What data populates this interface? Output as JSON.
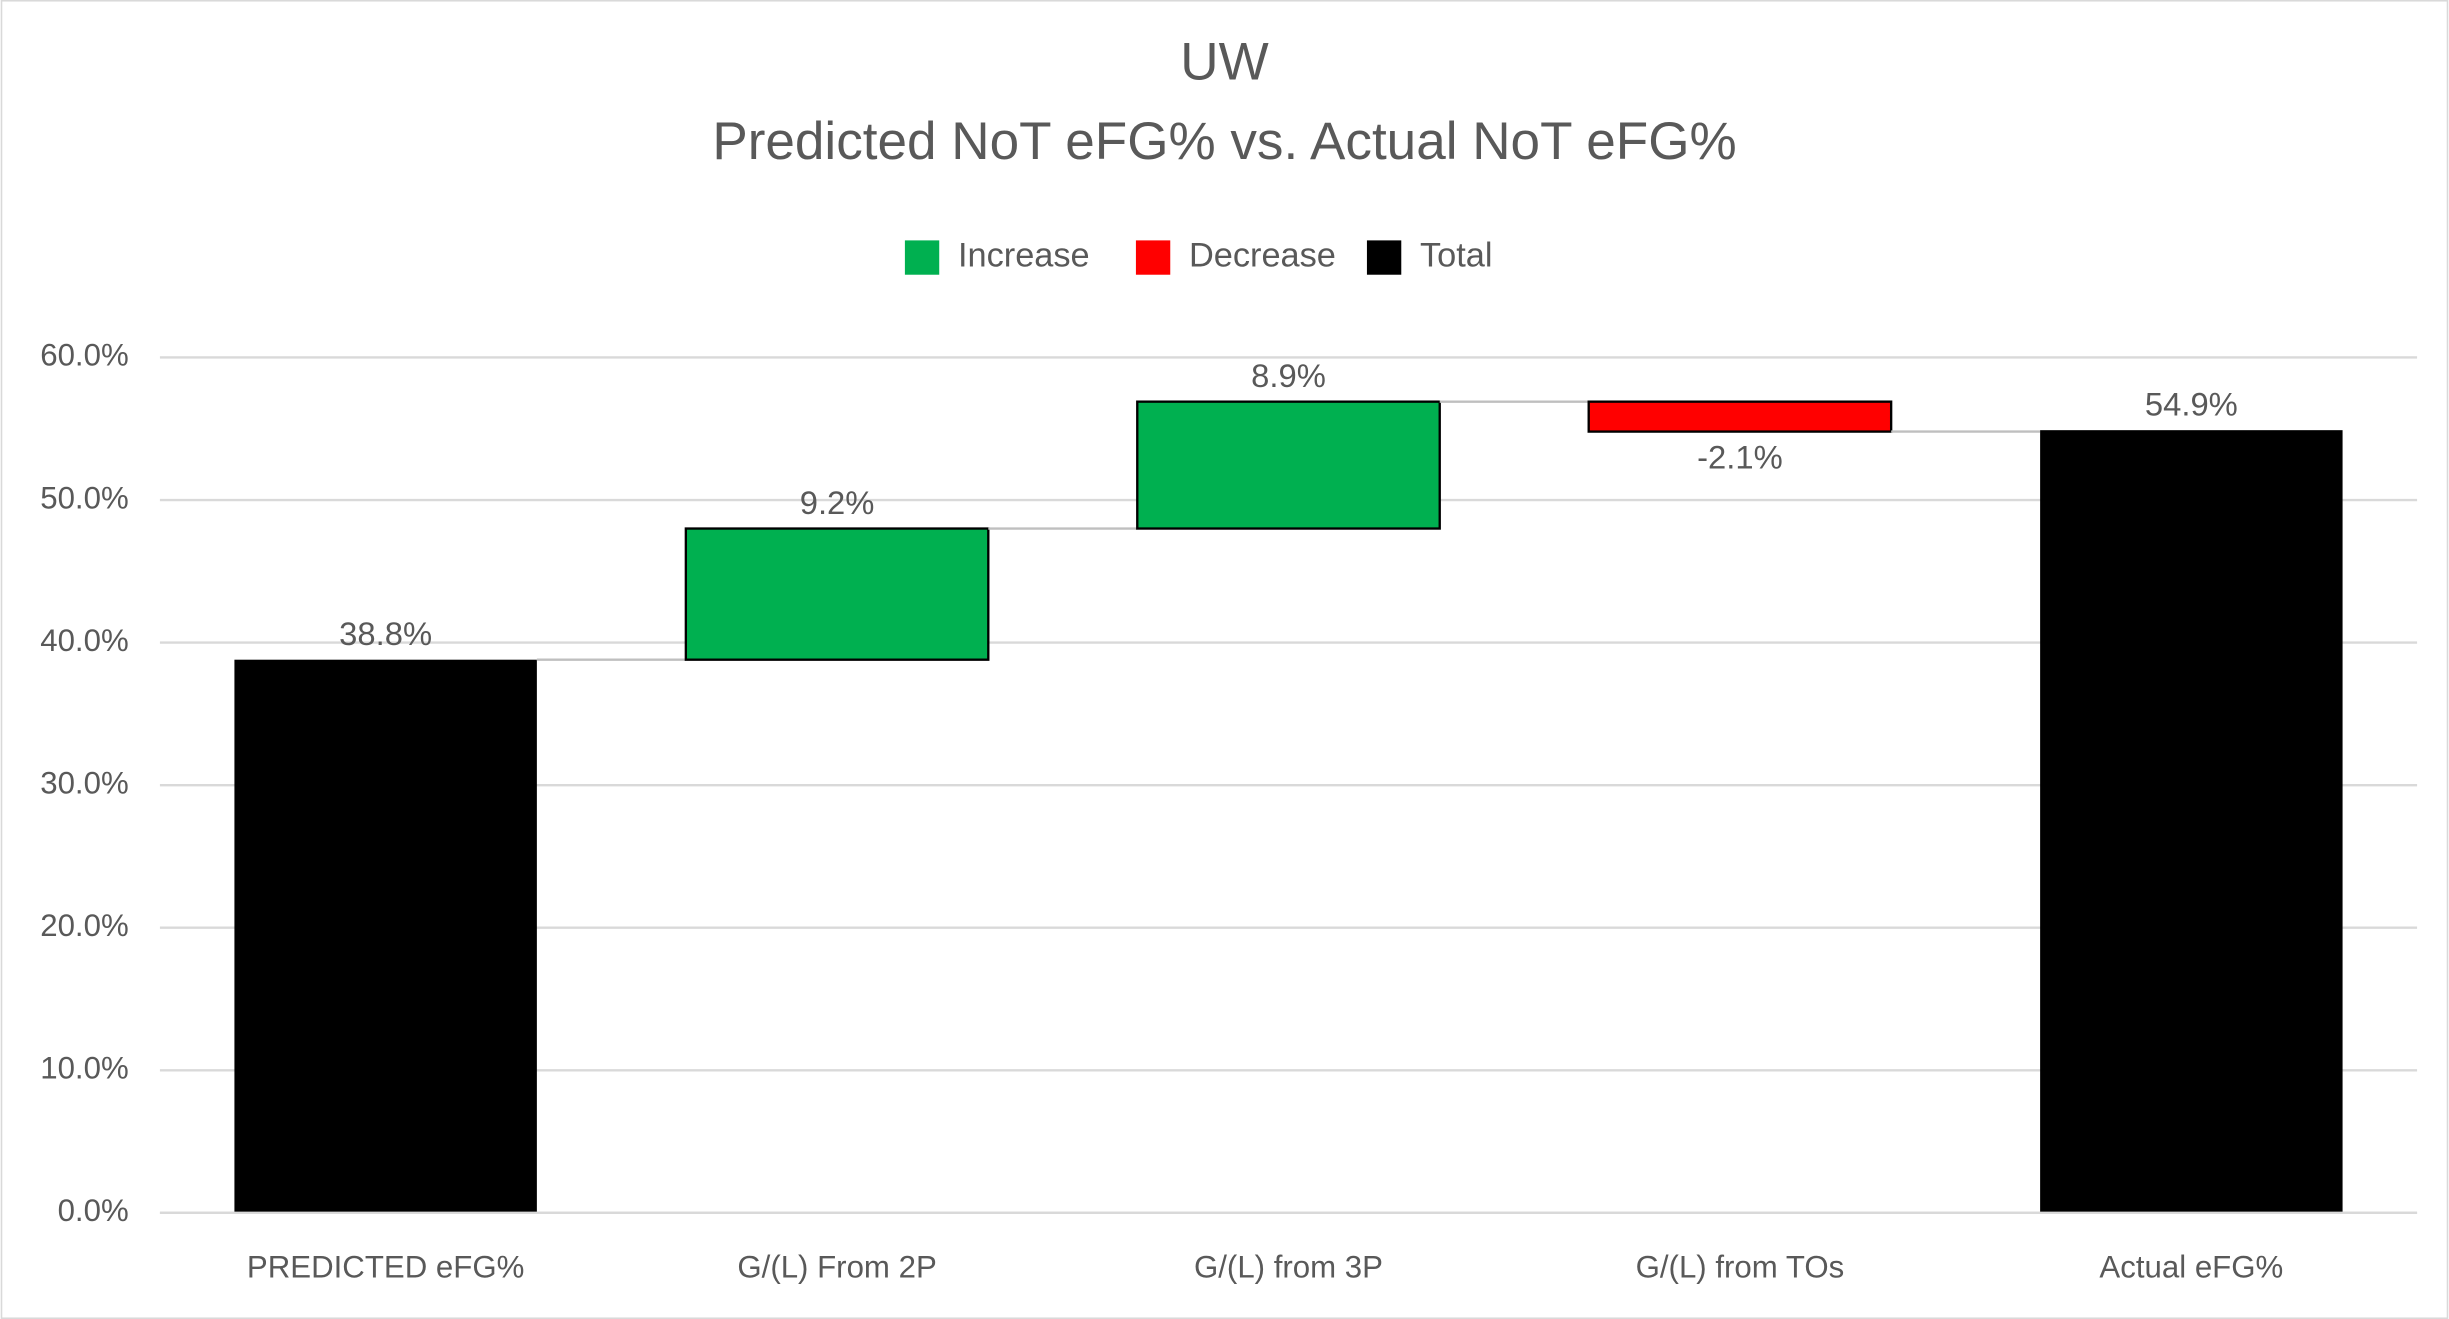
{
  "chart_data": {
    "type": "waterfall",
    "title": "UW",
    "subtitle": "Predicted NoT eFG% vs. Actual NoT eFG%",
    "categories": [
      "PREDICTED eFG%",
      "G/(L) From 2P",
      "G/(L) from 3P",
      "G/(L) from TOs",
      "Actual eFG%"
    ],
    "series": [
      {
        "name": "Increase",
        "color": "#00b050",
        "values": [
          null,
          9.2,
          8.9,
          null,
          null
        ],
        "value_labels": [
          null,
          "9.2%",
          "8.9%",
          null,
          null
        ]
      },
      {
        "name": "Decrease",
        "color": "#ff0000",
        "values": [
          null,
          null,
          null,
          -2.1,
          null
        ],
        "value_labels": [
          null,
          null,
          null,
          "-2.1%",
          null
        ]
      },
      {
        "name": "Total",
        "color": "#000000",
        "values": [
          38.8,
          null,
          null,
          null,
          54.9
        ],
        "value_labels": [
          "38.8%",
          null,
          null,
          null,
          "54.9%"
        ]
      }
    ],
    "ylim": [
      0,
      60
    ],
    "yticks": [
      {
        "value": 0,
        "label": "0.0%"
      },
      {
        "value": 10,
        "label": "10.0%"
      },
      {
        "value": 20,
        "label": "20.0%"
      },
      {
        "value": 30,
        "label": "30.0%"
      },
      {
        "value": 40,
        "label": "40.0%"
      },
      {
        "value": 50,
        "label": "50.0%"
      },
      {
        "value": 60,
        "label": "60.0%"
      }
    ],
    "grid": true,
    "legend": "top"
  }
}
